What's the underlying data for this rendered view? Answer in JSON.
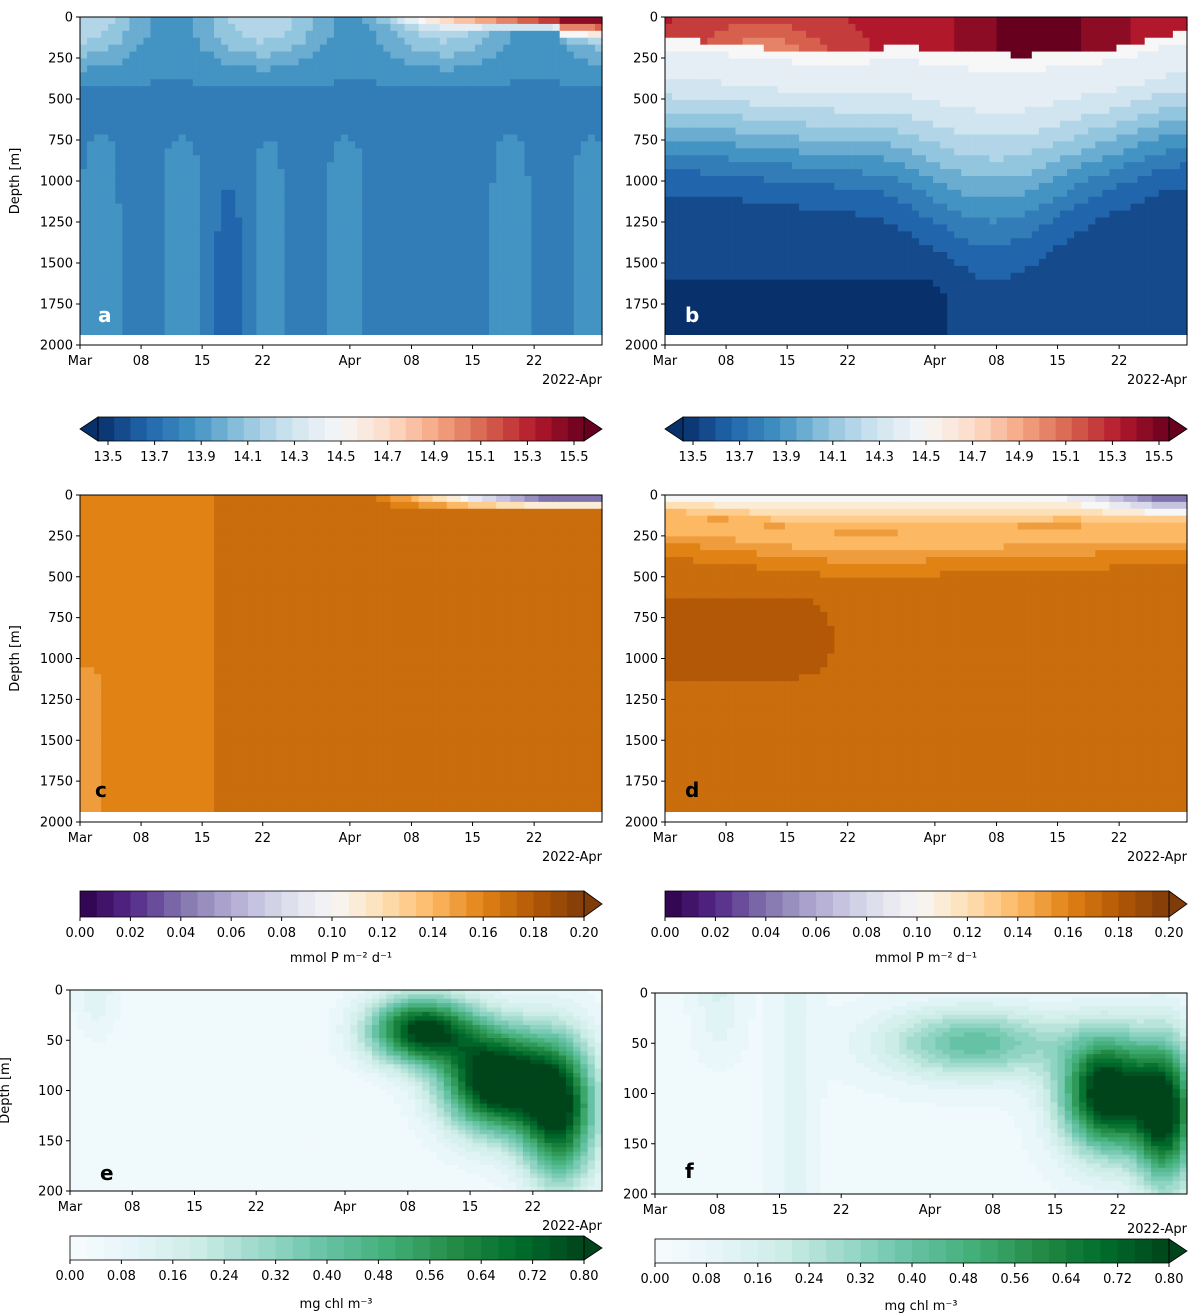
{
  "colors": {
    "temperature_cmap": [
      "#08306b",
      "#2166ac",
      "#4393c3",
      "#92c5de",
      "#d1e5f0",
      "#f7f7f7",
      "#fddbc7",
      "#f4a582",
      "#d6604d",
      "#b2182b",
      "#67001f"
    ],
    "export_cmap": [
      "#2d004b",
      "#542788",
      "#8073ac",
      "#b2abd2",
      "#d8daeb",
      "#f7f7f7",
      "#fee0b6",
      "#fdb863",
      "#e08214",
      "#b35806",
      "#7f3b08"
    ],
    "chl_cmap": [
      "#f7fcfd",
      "#e5f5f9",
      "#ccece6",
      "#99d8c9",
      "#66c2a4",
      "#41ae76",
      "#238b45",
      "#006d2c",
      "#00441b"
    ]
  },
  "chart_data": [
    {
      "type": "heatmap",
      "panel": "a",
      "variable": "temperature",
      "x": [
        "Mar",
        "08",
        "15",
        "22",
        "Apr",
        "08",
        "15",
        "22"
      ],
      "x_date_label": "2022-Apr",
      "ylabel": "Depth [m]",
      "yticks": [
        "0",
        "250",
        "500",
        "750",
        "1000",
        "1250",
        "1500",
        "1750",
        "2000"
      ],
      "ylim": [
        2000,
        0
      ],
      "value_range": [
        13.5,
        15.5
      ],
      "description_values": {
        "surface_late_april": 15.4,
        "deep_typical": 13.8,
        "upper_layer_early": 14.1
      }
    },
    {
      "type": "heatmap",
      "panel": "b",
      "variable": "temperature",
      "x": [
        "Mar",
        "08",
        "15",
        "22",
        "Apr",
        "08",
        "15",
        "22"
      ],
      "x_date_label": "2022-Apr",
      "ylabel": "",
      "yticks": [
        "0",
        "250",
        "500",
        "750",
        "1000",
        "1250",
        "1500",
        "1750",
        "2000"
      ],
      "ylim": [
        2000,
        0
      ],
      "value_range": [
        13.5,
        15.5
      ],
      "description_values": {
        "surface_layer": 15.2,
        "thermocline_depth_m": 220,
        "deep_typical": 13.6
      }
    },
    {
      "type": "heatmap",
      "panel": "c",
      "variable": "phosphorus_export",
      "x": [
        "Mar",
        "08",
        "15",
        "22",
        "Apr",
        "08",
        "15",
        "22"
      ],
      "x_date_label": "2022-Apr",
      "ylabel": "Depth [m]",
      "yticks": [
        "0",
        "250",
        "500",
        "750",
        "1000",
        "1250",
        "1500",
        "1750",
        "2000"
      ],
      "ylim": [
        2000,
        0
      ],
      "value_range": [
        0.0,
        0.2
      ],
      "description_values": {
        "interior_typical": 0.165,
        "surface_late_april": 0.02
      }
    },
    {
      "type": "heatmap",
      "panel": "d",
      "variable": "phosphorus_export",
      "x": [
        "Mar",
        "08",
        "15",
        "22",
        "Apr",
        "08",
        "15",
        "22"
      ],
      "x_date_label": "2022-Apr",
      "ylabel": "",
      "yticks": [
        "0",
        "250",
        "500",
        "750",
        "1000",
        "1250",
        "1500",
        "1750",
        "2000"
      ],
      "ylim": [
        2000,
        0
      ],
      "value_range": [
        0.0,
        0.2
      ],
      "description_values": {
        "interior_typical": 0.17,
        "mid_depth_max": 0.18,
        "surface": 0.09
      }
    },
    {
      "type": "heatmap",
      "panel": "e",
      "variable": "chlorophyll",
      "x": [
        "Mar",
        "08",
        "15",
        "22",
        "Apr",
        "08",
        "15",
        "22"
      ],
      "x_date_label": "2022-Apr",
      "ylabel": "Depth [m]",
      "yticks": [
        "0",
        "50",
        "100",
        "150",
        "200"
      ],
      "ylim": [
        200,
        0
      ],
      "value_range": [
        0.0,
        0.8
      ],
      "description_values": {
        "bloom_max": 0.8,
        "background": 0.04
      }
    },
    {
      "type": "heatmap",
      "panel": "f",
      "variable": "chlorophyll",
      "x": [
        "Mar",
        "08",
        "15",
        "22",
        "Apr",
        "08",
        "15",
        "22"
      ],
      "x_date_label": "2022-Apr",
      "ylabel": "",
      "yticks": [
        "0",
        "50",
        "100",
        "150",
        "200"
      ],
      "ylim": [
        200,
        0
      ],
      "value_range": [
        0.0,
        0.8
      ],
      "description_values": {
        "bloom_max": 0.8,
        "mid_april": 0.4,
        "background": 0.06
      }
    }
  ],
  "colorbars": [
    {
      "id": "cb-temp-left",
      "ticks": [
        "13.5",
        "13.7",
        "13.9",
        "14.1",
        "14.3",
        "14.5",
        "14.7",
        "14.9",
        "15.1",
        "15.3",
        "15.5"
      ],
      "label": ""
    },
    {
      "id": "cb-temp-right",
      "ticks": [
        "13.5",
        "13.7",
        "13.9",
        "14.1",
        "14.3",
        "14.5",
        "14.7",
        "14.9",
        "15.1",
        "15.3",
        "15.5"
      ],
      "label": ""
    },
    {
      "id": "cb-exp-left",
      "ticks": [
        "0.00",
        "0.02",
        "0.04",
        "0.06",
        "0.08",
        "0.10",
        "0.12",
        "0.14",
        "0.16",
        "0.18",
        "0.20"
      ],
      "label": "mmol P m⁻² d⁻¹"
    },
    {
      "id": "cb-exp-right",
      "ticks": [
        "0.00",
        "0.02",
        "0.04",
        "0.06",
        "0.08",
        "0.10",
        "0.12",
        "0.14",
        "0.16",
        "0.18",
        "0.20"
      ],
      "label": "mmol P m⁻² d⁻¹"
    },
    {
      "id": "cb-chl-left",
      "ticks": [
        "0.00",
        "0.08",
        "0.16",
        "0.24",
        "0.32",
        "0.40",
        "0.48",
        "0.56",
        "0.64",
        "0.72",
        "0.80"
      ],
      "label": "mg chl m⁻³"
    },
    {
      "id": "cb-chl-right",
      "ticks": [
        "0.00",
        "0.08",
        "0.16",
        "0.24",
        "0.32",
        "0.40",
        "0.48",
        "0.56",
        "0.64",
        "0.72",
        "0.80"
      ],
      "label": "mg chl m⁻³"
    }
  ]
}
